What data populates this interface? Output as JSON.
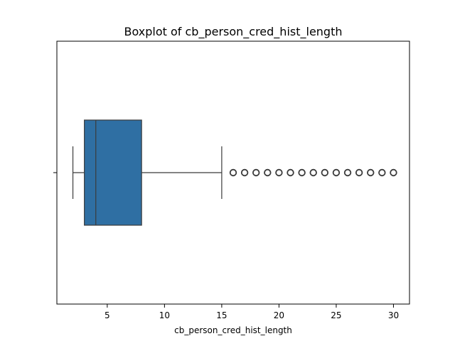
{
  "chart_data": {
    "type": "box",
    "title": "Boxplot of cb_person_cred_hist_length",
    "xlabel": "cb_person_cred_hist_length",
    "ylabel": "",
    "xlim": [
      0.6,
      31.4
    ],
    "xticks": [
      5,
      10,
      15,
      20,
      25,
      30
    ],
    "xtick_labels": [
      "5",
      "10",
      "15",
      "20",
      "25",
      "30"
    ],
    "grid": false,
    "legend": "none",
    "box": {
      "whisker_low": 2,
      "q1": 3,
      "median": 4,
      "q3": 8,
      "whisker_high": 15,
      "outliers": [
        16,
        17,
        18,
        19,
        20,
        21,
        22,
        23,
        24,
        25,
        26,
        27,
        28,
        29,
        30
      ]
    },
    "colors": {
      "box_fill": "#2f6fa3",
      "box_edge": "#3b3b3b",
      "whisker": "#3b3b3b",
      "median": "#3b3b3b",
      "outlier_edge": "#3b3b3b"
    }
  }
}
